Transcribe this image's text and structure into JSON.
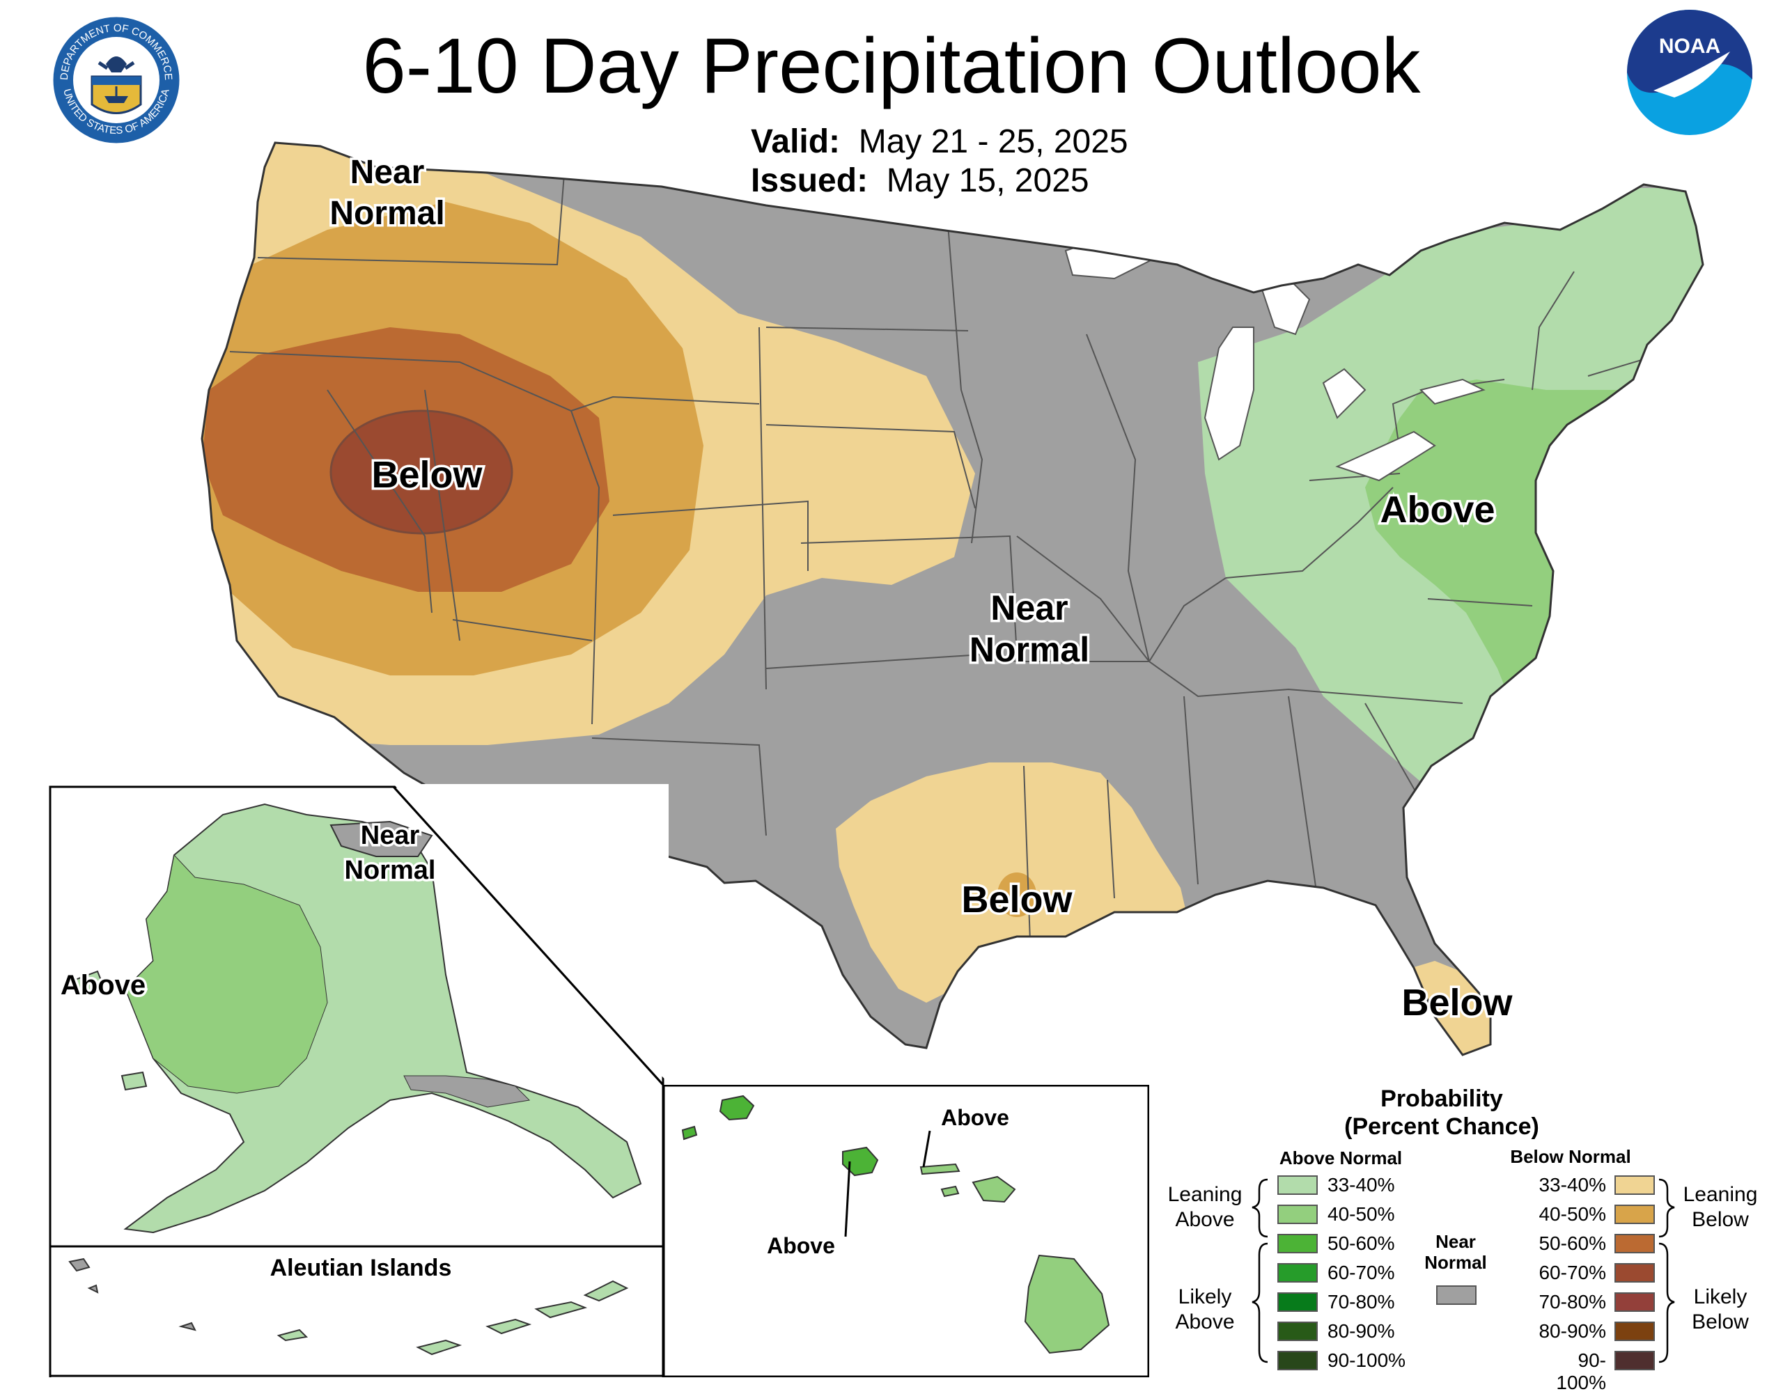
{
  "header": {
    "title": "6-10 Day Precipitation Outlook",
    "valid_label": "Valid:",
    "valid_value": "May 21 - 25, 2025",
    "issued_label": "Issued:",
    "issued_value": "May 15, 2025"
  },
  "logos": {
    "doc_ring_top": "DEPARTMENT OF COMMERCE",
    "doc_ring_bottom": "UNITED STATES OF AMERICA",
    "noaa": "NOAA"
  },
  "map_labels": {
    "nw_near_normal_1": "Near",
    "nw_near_normal_2": "Normal",
    "west_below": "Below",
    "central_near_1": "Near",
    "central_near_2": "Normal",
    "east_above": "Above",
    "gulf_below": "Below",
    "florida_below": "Below",
    "ak_near_1": "Near",
    "ak_near_2": "Normal",
    "ak_above": "Above",
    "aleutian_title": "Aleutian Islands",
    "hi_above_1": "Above",
    "hi_above_2": "Above"
  },
  "legend": {
    "title_1": "Probability",
    "title_2": "(Percent Chance)",
    "above_header": "Above Normal",
    "below_header": "Below Normal",
    "near_1": "Near",
    "near_2": "Normal",
    "near_color": "#a0a0a0",
    "leaning_above_1": "Leaning",
    "leaning_above_2": "Above",
    "likely_above_1": "Likely",
    "likely_above_2": "Above",
    "leaning_below_1": "Leaning",
    "leaning_below_2": "Below",
    "likely_below_1": "Likely",
    "likely_below_2": "Below",
    "above": [
      {
        "label": "33-40%",
        "color": "#b2dcab"
      },
      {
        "label": "40-50%",
        "color": "#93cf7e"
      },
      {
        "label": "50-60%",
        "color": "#4cb336"
      },
      {
        "label": "60-70%",
        "color": "#269c2a"
      },
      {
        "label": "70-80%",
        "color": "#077b1b"
      },
      {
        "label": "80-90%",
        "color": "#285a18"
      },
      {
        "label": "90-100%",
        "color": "#28471a"
      }
    ],
    "below": [
      {
        "label": "33-40%",
        "color": "#f0d493"
      },
      {
        "label": "40-50%",
        "color": "#d8a44a"
      },
      {
        "label": "50-60%",
        "color": "#bb6a32"
      },
      {
        "label": "60-70%",
        "color": "#9b4a30"
      },
      {
        "label": "70-80%",
        "color": "#93403a"
      },
      {
        "label": "80-90%",
        "color": "#7c4110"
      },
      {
        "label": "90-100%",
        "color": "#4f2f2f"
      }
    ]
  }
}
